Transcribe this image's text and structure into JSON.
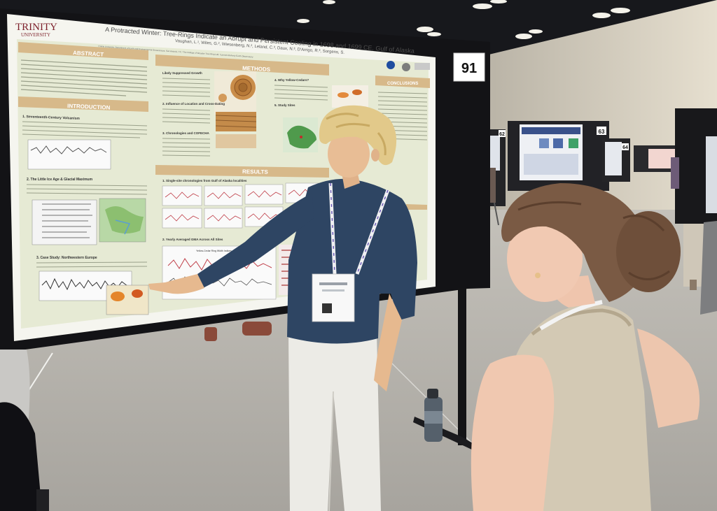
{
  "poster": {
    "university_name": "TRINITY",
    "university_sub": "UNIVERSITY",
    "title": "A Protracted Winter: Tree-Rings Indicate an Abrupt and Persistent Cooling in 1698 and 1699 CE, Gulf of Alaska",
    "authors": "Vaughan, L.¹, Wiles, G.², Wiesenberg, N.², Leland, C.³, Daux, N.³, D'Arrigo, R.³, Sorgens, S.",
    "affiliations": "¹Trinity University, Department of Earth and Environmental Geosciences, San Antonio, TX; ²The College of Wooster Tree Ring Lab; ³Lamont-Doherty Earth Observatory",
    "number": "91",
    "sections": {
      "abstract": "ABSTRACT",
      "introduction": "INTRODUCTION",
      "methods": "METHODS",
      "results": "RESULTS",
      "conclusions": "CONCLUSIONS"
    },
    "subheads": {
      "s1": "1. Seventeenth-Century Volcanism",
      "s2": "2. The Little Ice Age & Glacial Maximum",
      "s3": "3. Case Study: Northwestern Europe",
      "m1": "Likely Suppressed Growth",
      "m2": "2. Influence of Location and Cross-Dating",
      "m3": "3. Chronologies and COFECHA",
      "m4": "4. Why Yellow-Cedars?",
      "m5": "5. Study Sites",
      "r1": "1. Single-site chronologies from Gulf of Alaska localities",
      "r2": "2. Yearly Averaged GMA Across All Sites",
      "r3": "Yellow-Cedar Ring Width Indices, GOA"
    }
  },
  "background_posters": [
    {
      "number": "62"
    },
    {
      "number": "63"
    },
    {
      "number": "64"
    }
  ],
  "colors": {
    "poster_bg": "#e8ecd6",
    "section_header": "#d7b98a",
    "board": "#141416",
    "floor": "#b4b1ab",
    "wall": "#ddd6c6",
    "shirt": "#2e4563",
    "pants": "#ecebe6",
    "vest": "#d3c9b4",
    "hair_blond": "#e2c98a",
    "hair_brown": "#7a5a44"
  }
}
